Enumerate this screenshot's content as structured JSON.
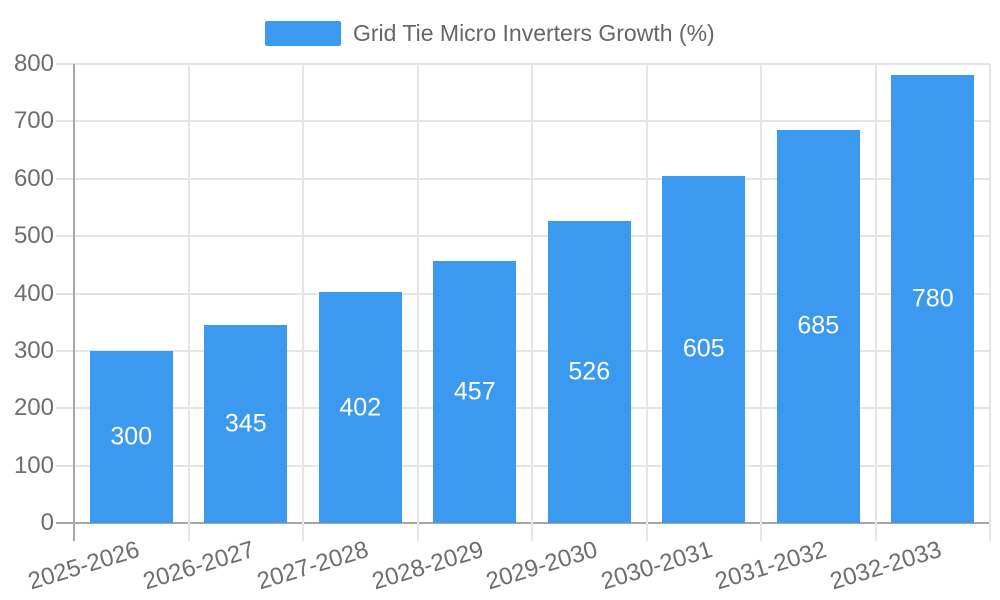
{
  "chart_data": {
    "type": "bar",
    "title": "Grid Tie Micro Inverters Growth (%)",
    "categories": [
      "2025-2026",
      "2026-2027",
      "2027-2028",
      "2028-2029",
      "2029-2030",
      "2030-2031",
      "2031-2032",
      "2032-2033"
    ],
    "values": [
      300,
      345,
      402,
      457,
      526,
      605,
      685,
      780
    ],
    "xlabel": "",
    "ylabel": "",
    "ylim": [
      0,
      800
    ],
    "ytick_step": 100,
    "yticks": [
      0,
      100,
      200,
      300,
      400,
      500,
      600,
      700,
      800
    ],
    "grid": "horizontal and vertical light gridlines on",
    "legend_position": "top-center",
    "value_labels": "inside bars, vertically centered, white",
    "colors": {
      "bar": "#3b99f0",
      "grid": "#e5e5e5",
      "axis": "#a6a6a6",
      "tick_text": "#6e6e6e",
      "legend_text": "#666666",
      "value_text": "#ffffff",
      "background": "#ffffff"
    }
  }
}
